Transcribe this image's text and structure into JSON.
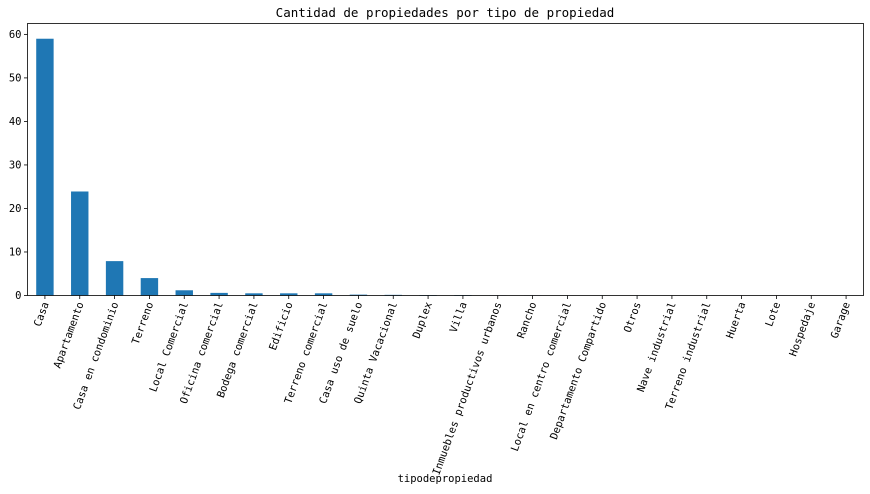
{
  "chart_data": {
    "type": "bar",
    "title": "Cantidad de propiedades por tipo de propiedad",
    "xlabel": "tipodepropiedad",
    "ylabel": "",
    "categories": [
      "Casa",
      "Apartamento",
      "Casa en condominio",
      "Terreno",
      "Local Comercial",
      "Oficina comercial",
      "Bodega comercial",
      "Edificio",
      "Terreno comercial",
      "Casa uso de suelo",
      "Quinta Vacacional",
      "Duplex",
      "Villa",
      "Inmuebles productivos urbanos",
      "Rancho",
      "Local en centro comercial",
      "Departamento Compartido",
      "Otros",
      "Nave industrial",
      "Terreno industrial",
      "Huerta",
      "Lote",
      "Hospedaje",
      "Garage"
    ],
    "values": [
      59.0,
      23.9,
      7.9,
      4.0,
      1.2,
      0.6,
      0.5,
      0.5,
      0.5,
      0.2,
      0.15,
      0.1,
      0.1,
      0.02,
      0.02,
      0.01,
      0.01,
      0.01,
      0.01,
      0.01,
      0.005,
      0.005,
      0.005,
      0.003
    ],
    "ylim": [
      0,
      62.5
    ],
    "yticks": [
      0,
      10,
      20,
      30,
      40,
      50,
      60
    ],
    "bar_color": "#1f77b4",
    "grid": false,
    "legend": "none"
  }
}
